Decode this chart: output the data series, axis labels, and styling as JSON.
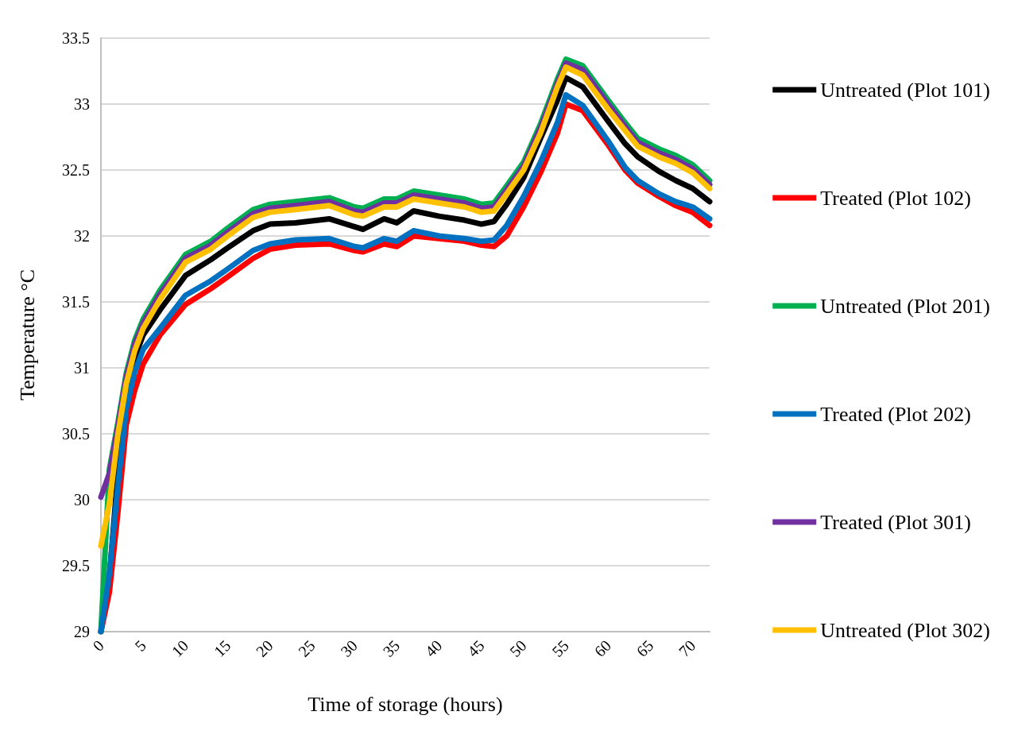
{
  "chart_data": {
    "type": "line",
    "xlabel": "Time of storage (hours)",
    "ylabel": "Temperature °C",
    "x": [
      0,
      1,
      2,
      3,
      4,
      5,
      7,
      10,
      13,
      15,
      18,
      20,
      23,
      27,
      30,
      31,
      33.5,
      35,
      37,
      40,
      43,
      45,
      46.5,
      48,
      50,
      52,
      54,
      55,
      57,
      60,
      62,
      63.5,
      66,
      68,
      70,
      72
    ],
    "xlim": [
      0,
      72
    ],
    "xticks": [
      0,
      5,
      10,
      15,
      20,
      25,
      30,
      35,
      40,
      45,
      50,
      55,
      60,
      65,
      70
    ],
    "ylim": [
      29,
      33.5
    ],
    "yticks": [
      29,
      29.5,
      30,
      30.5,
      31,
      31.5,
      32,
      32.5,
      33,
      33.5
    ],
    "grid": "y",
    "legend": "right",
    "marker": "none",
    "line_style": "solid",
    "series": [
      {
        "name": "Untreated (Plot 101)",
        "color": "#000000",
        "values": [
          29.0,
          29.4,
          30.2,
          30.75,
          31.08,
          31.25,
          31.44,
          31.7,
          31.82,
          31.91,
          32.04,
          32.09,
          32.1,
          32.13,
          32.07,
          32.05,
          32.13,
          32.1,
          32.19,
          32.15,
          32.12,
          32.09,
          32.11,
          32.24,
          32.44,
          32.74,
          33.03,
          33.2,
          33.13,
          32.87,
          32.7,
          32.6,
          32.49,
          32.42,
          32.36,
          32.26
        ]
      },
      {
        "name": "Treated (Plot 102)",
        "color": "#ff0000",
        "values": [
          29.0,
          29.3,
          29.9,
          30.57,
          30.83,
          31.03,
          31.25,
          31.48,
          31.6,
          31.69,
          31.83,
          31.9,
          31.93,
          31.94,
          31.89,
          31.88,
          31.94,
          31.92,
          32.0,
          31.98,
          31.96,
          31.93,
          31.92,
          32.0,
          32.22,
          32.48,
          32.78,
          33.0,
          32.95,
          32.69,
          32.5,
          32.4,
          32.3,
          32.23,
          32.18,
          32.08
        ]
      },
      {
        "name": "Untreated (Plot 201)",
        "color": "#00b050",
        "values": [
          29.0,
          30.23,
          30.58,
          30.96,
          31.21,
          31.37,
          31.59,
          31.86,
          31.96,
          32.06,
          32.2,
          32.24,
          32.26,
          32.29,
          32.22,
          32.21,
          32.28,
          32.28,
          32.34,
          32.31,
          32.28,
          32.24,
          32.25,
          32.38,
          32.56,
          32.85,
          33.19,
          33.34,
          33.29,
          33.03,
          32.86,
          32.74,
          32.66,
          32.61,
          32.54,
          32.42
        ]
      },
      {
        "name": "Treated (Plot 202)",
        "color": "#0070c0",
        "values": [
          29.0,
          29.44,
          30.1,
          30.69,
          30.97,
          31.14,
          31.3,
          31.55,
          31.66,
          31.75,
          31.89,
          31.94,
          31.97,
          31.98,
          31.92,
          31.91,
          31.98,
          31.96,
          32.04,
          32.0,
          31.98,
          31.96,
          31.97,
          32.08,
          32.3,
          32.56,
          32.86,
          33.07,
          32.99,
          32.72,
          32.52,
          32.42,
          32.32,
          32.26,
          32.22,
          32.13
        ]
      },
      {
        "name": "Treated (Plot 301)",
        "color": "#7030a0",
        "values": [
          30.02,
          30.2,
          30.55,
          30.93,
          31.18,
          31.34,
          31.56,
          31.83,
          31.93,
          32.03,
          32.17,
          32.21,
          32.23,
          32.26,
          32.19,
          32.18,
          32.25,
          32.25,
          32.31,
          32.28,
          32.25,
          32.21,
          32.22,
          32.35,
          32.53,
          32.82,
          33.16,
          33.31,
          33.26,
          33.0,
          32.83,
          32.71,
          32.63,
          32.58,
          32.51,
          32.39
        ]
      },
      {
        "name": "Untreated (Plot 302)",
        "color": "#ffc000",
        "values": [
          29.65,
          29.97,
          30.49,
          30.88,
          31.13,
          31.3,
          31.52,
          31.8,
          31.9,
          32.0,
          32.14,
          32.18,
          32.2,
          32.23,
          32.16,
          32.15,
          32.22,
          32.22,
          32.28,
          32.25,
          32.22,
          32.18,
          32.19,
          32.32,
          32.5,
          32.78,
          33.13,
          33.28,
          33.22,
          32.96,
          32.8,
          32.68,
          32.6,
          32.55,
          32.48,
          32.36
        ]
      }
    ]
  }
}
